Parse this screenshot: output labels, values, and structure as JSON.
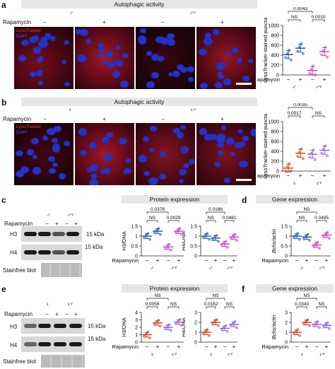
{
  "figure": {
    "panel_letters": [
      "a",
      "b",
      "c",
      "d",
      "e",
      "f"
    ],
    "headers": {
      "a": "Autophagic activity",
      "b": "Autophagic activity",
      "c": "Protein expression",
      "d": "Gene expression",
      "e": "Protein expression",
      "f": "Gene expression"
    },
    "rapamycin_label": "Rapamycin",
    "minus": "−",
    "plus": "+",
    "male": "♂",
    "male_prime": "♂ᵛ",
    "female": "♀",
    "female_prime": "♀ᵛ",
    "lysotracker": "LysoTracker",
    "dapi": "DAPI",
    "kda15": "15 kDa",
    "h3": "H3",
    "h4": "H4",
    "stainfree": "Stainfree blot",
    "colors": {
      "control": "#1f4fa8",
      "rapa": "#6a6af0",
      "mprime": "#cc33cc",
      "fcontrol": "#d03a1a",
      "fprime": "#8a5ad8"
    }
  },
  "chart_data": [
    {
      "id": "a-plot",
      "type": "scatter",
      "ylabel": "LysoTracker-stained puncta",
      "ylim": [
        0,
        1000
      ],
      "ticks": [
        0,
        200,
        400,
        600,
        800,
        1000
      ],
      "groups": [
        "♂ −",
        "♂ +",
        "♂ᵛ −",
        "♂ᵛ +"
      ],
      "means": [
        410,
        540,
        90,
        470
      ],
      "brackets": [
        {
          "label": "0.0043",
          "from": 0,
          "to": 2
        },
        {
          "label": "NS",
          "from": 0,
          "to": 1
        },
        {
          "label": "0.0010",
          "from": 2,
          "to": 3
        }
      ]
    },
    {
      "id": "b-plot",
      "type": "scatter",
      "ylabel": "LysoTracker-stained puncta",
      "ylim": [
        0,
        1000
      ],
      "ticks": [
        0,
        200,
        400,
        600,
        800,
        1000
      ],
      "groups": [
        "♀ −",
        "♀ +",
        "♀ᵛ −",
        "♀ᵛ +"
      ],
      "means": [
        60,
        360,
        340,
        420
      ],
      "brackets": [
        {
          "label": "0.0035",
          "from": 0,
          "to": 2
        },
        {
          "label": "0.0017",
          "from": 0,
          "to": 1
        },
        {
          "label": "NS",
          "from": 2,
          "to": 3
        }
      ]
    },
    {
      "id": "c-h3",
      "type": "scatter",
      "ylabel": "H3/DNA",
      "ylim": [
        0,
        1.5
      ],
      "ticks": [
        0,
        0.5,
        1.0,
        1.5
      ],
      "means": [
        1.0,
        1.25,
        0.45,
        1.25
      ],
      "brackets": [
        {
          "label": "0.0378",
          "from": 0,
          "to": 2
        },
        {
          "label": "NS",
          "from": 0,
          "to": 1
        },
        {
          "label": "0.0029",
          "from": 2,
          "to": 3
        }
      ]
    },
    {
      "id": "c-h4",
      "type": "scatter",
      "ylabel": "H4/DNA",
      "ylim": [
        0,
        1.5
      ],
      "ticks": [
        0,
        0.5,
        1.0,
        1.5
      ],
      "means": [
        1.0,
        0.9,
        0.6,
        0.95
      ],
      "brackets": [
        {
          "label": "0.0186",
          "from": 0,
          "to": 2
        },
        {
          "label": "NS",
          "from": 0,
          "to": 1
        },
        {
          "label": "0.0481",
          "from": 2,
          "to": 3
        }
      ]
    },
    {
      "id": "d-bchs",
      "type": "scatter",
      "ylabel": "Bchs/actin",
      "ylim": [
        0,
        1.5
      ],
      "ticks": [
        0,
        0.5,
        1.0,
        1.5
      ],
      "means": [
        1.0,
        0.95,
        0.55,
        1.05
      ],
      "brackets": [
        {
          "label": "NS",
          "from": 0,
          "to": 2
        },
        {
          "label": "NS",
          "from": 0,
          "to": 1
        },
        {
          "label": "0.0495",
          "from": 2,
          "to": 3
        }
      ]
    },
    {
      "id": "e-h3",
      "type": "scatter",
      "ylabel": "H3/DNA",
      "ylim": [
        0,
        4
      ],
      "ticks": [
        0,
        1,
        2,
        3,
        4
      ],
      "means": [
        1.0,
        2.6,
        2.0,
        2.7
      ],
      "brackets": [
        {
          "label": "NS",
          "from": 0,
          "to": 2
        },
        {
          "label": "0.0056",
          "from": 0,
          "to": 1
        },
        {
          "label": "NS",
          "from": 2,
          "to": 3
        }
      ]
    },
    {
      "id": "e-h4",
      "type": "scatter",
      "ylabel": "H4/DNA",
      "ylim": [
        0,
        3
      ],
      "ticks": [
        0,
        1,
        2,
        3
      ],
      "means": [
        1.0,
        2.0,
        1.4,
        1.8
      ],
      "brackets": [
        {
          "label": "NS",
          "from": 0,
          "to": 2
        },
        {
          "label": "0.0162",
          "from": 0,
          "to": 1
        },
        {
          "label": "NS",
          "from": 2,
          "to": 3
        }
      ]
    },
    {
      "id": "f-bchs",
      "type": "scatter",
      "ylabel": "Bchs/actin",
      "ylim": [
        0,
        3
      ],
      "ticks": [
        0,
        1,
        2,
        3
      ],
      "means": [
        1.0,
        2.0,
        1.8,
        1.7
      ],
      "brackets": [
        {
          "label": "NS",
          "from": 0,
          "to": 2
        },
        {
          "label": "0.0343",
          "from": 0,
          "to": 1
        },
        {
          "label": "NS",
          "from": 2,
          "to": 3
        }
      ]
    }
  ]
}
